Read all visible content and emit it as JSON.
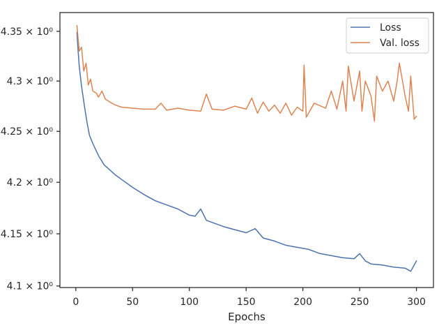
{
  "chart_data": {
    "type": "line",
    "title": "",
    "xlabel": "Epochs",
    "ylabel": "",
    "xlim": [
      -14,
      315
    ],
    "ylim": [
      4.0985,
      4.369
    ],
    "y_scale": "log",
    "x_ticks": [
      0,
      50,
      100,
      150,
      200,
      250,
      300
    ],
    "y_ticks": [
      {
        "value": 4.1,
        "label": "4.1 × 10⁰"
      },
      {
        "value": 4.15,
        "label": "4.15 × 10⁰"
      },
      {
        "value": 4.2,
        "label": "4.2 × 10⁰"
      },
      {
        "value": 4.25,
        "label": "4.25 × 10⁰"
      },
      {
        "value": 4.3,
        "label": "4.3 × 10⁰"
      },
      {
        "value": 4.35,
        "label": "4.35 × 10⁰"
      }
    ],
    "grid": false,
    "legend_position": "top-right",
    "series": [
      {
        "name": "Loss",
        "color": "#4c72b0",
        "x": [
          1,
          2,
          3,
          5,
          8,
          10,
          12,
          15,
          20,
          25,
          30,
          35,
          40,
          50,
          60,
          70,
          80,
          90,
          100,
          105,
          110,
          115,
          120,
          130,
          140,
          150,
          158,
          165,
          175,
          185,
          195,
          205,
          215,
          225,
          235,
          245,
          250,
          255,
          260,
          270,
          280,
          290,
          295,
          300
        ],
        "y": [
          4.349,
          4.33,
          4.315,
          4.295,
          4.272,
          4.258,
          4.246,
          4.238,
          4.226,
          4.217,
          4.212,
          4.207,
          4.203,
          4.195,
          4.188,
          4.182,
          4.178,
          4.174,
          4.168,
          4.167,
          4.174,
          4.163,
          4.161,
          4.157,
          4.154,
          4.151,
          4.155,
          4.146,
          4.143,
          4.139,
          4.137,
          4.135,
          4.131,
          4.129,
          4.127,
          4.126,
          4.131,
          4.124,
          4.121,
          4.12,
          4.118,
          4.117,
          4.114,
          4.124
        ]
      },
      {
        "name": "Val. loss",
        "color": "#dd8452",
        "x": [
          1,
          3,
          5,
          7,
          9,
          11,
          13,
          15,
          18,
          20,
          23,
          26,
          30,
          35,
          40,
          50,
          60,
          70,
          75,
          80,
          90,
          100,
          110,
          115,
          120,
          130,
          140,
          150,
          155,
          160,
          165,
          170,
          175,
          180,
          185,
          190,
          195,
          200,
          201,
          203,
          210,
          220,
          225,
          230,
          235,
          238,
          240,
          245,
          250,
          252,
          255,
          260,
          263,
          265,
          270,
          275,
          280,
          283,
          285,
          290,
          293,
          295,
          298,
          300
        ],
        "y": [
          4.356,
          4.33,
          4.334,
          4.31,
          4.318,
          4.296,
          4.302,
          4.29,
          4.288,
          4.284,
          4.29,
          4.282,
          4.279,
          4.276,
          4.274,
          4.273,
          4.272,
          4.272,
          4.278,
          4.271,
          4.273,
          4.271,
          4.27,
          4.287,
          4.272,
          4.271,
          4.275,
          4.272,
          4.283,
          4.268,
          4.279,
          4.27,
          4.276,
          4.268,
          4.278,
          4.266,
          4.274,
          4.27,
          4.316,
          4.264,
          4.278,
          4.273,
          4.29,
          4.272,
          4.3,
          4.27,
          4.315,
          4.28,
          4.31,
          4.27,
          4.3,
          4.285,
          4.26,
          4.305,
          4.29,
          4.3,
          4.28,
          4.3,
          4.318,
          4.285,
          4.27,
          4.305,
          4.262,
          4.265
        ]
      }
    ]
  }
}
